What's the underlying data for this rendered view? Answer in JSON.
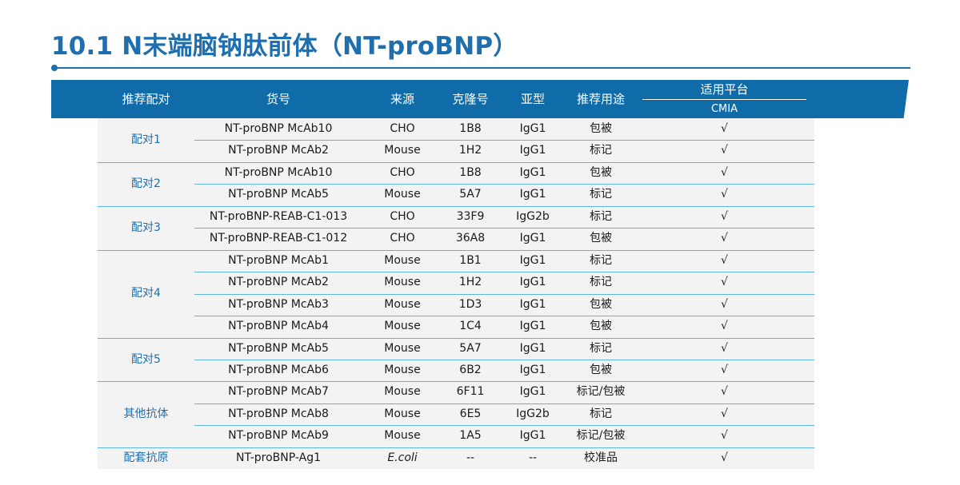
{
  "title": "10.1 N末端脑钠肽前体（NT-proBNP）",
  "headers": {
    "pair": "推荐配对",
    "catalog": "货号",
    "source": "来源",
    "clone": "克隆号",
    "subtype": "亚型",
    "usage": "推荐用途",
    "platform": "适用平台",
    "cmia": "CMIA"
  },
  "groups": [
    {
      "label": "配对1",
      "rows": [
        {
          "catalog": "NT-proBNP McAb10",
          "source": "CHO",
          "clone": "1B8",
          "subtype": "IgG1",
          "usage": "包被",
          "cmia": "√"
        },
        {
          "catalog": "NT-proBNP McAb2",
          "source": "Mouse",
          "clone": "1H2",
          "subtype": "IgG1",
          "usage": "标记",
          "cmia": "√"
        }
      ]
    },
    {
      "label": "配对2",
      "rows": [
        {
          "catalog": "NT-proBNP McAb10",
          "source": "CHO",
          "clone": "1B8",
          "subtype": "IgG1",
          "usage": "包被",
          "cmia": "√"
        },
        {
          "catalog": "NT-proBNP McAb5",
          "source": "Mouse",
          "clone": "5A7",
          "subtype": "IgG1",
          "usage": "标记",
          "cmia": "√"
        }
      ]
    },
    {
      "label": "配对3",
      "rows": [
        {
          "catalog": "NT-proBNP-REAB-C1-013",
          "source": "CHO",
          "clone": "33F9",
          "subtype": "IgG2b",
          "usage": "标记",
          "cmia": "√"
        },
        {
          "catalog": "NT-proBNP-REAB-C1-012",
          "source": "CHO",
          "clone": "36A8",
          "subtype": "IgG1",
          "usage": "包被",
          "cmia": "√"
        }
      ]
    },
    {
      "label": "配对4",
      "rows": [
        {
          "catalog": "NT-proBNP McAb1",
          "source": "Mouse",
          "clone": "1B1",
          "subtype": "IgG1",
          "usage": "标记",
          "cmia": "√"
        },
        {
          "catalog": "NT-proBNP McAb2",
          "source": "Mouse",
          "clone": "1H2",
          "subtype": "IgG1",
          "usage": "标记",
          "cmia": "√"
        },
        {
          "catalog": "NT-proBNP McAb3",
          "source": "Mouse",
          "clone": "1D3",
          "subtype": "IgG1",
          "usage": "包被",
          "cmia": "√"
        },
        {
          "catalog": "NT-proBNP McAb4",
          "source": "Mouse",
          "clone": "1C4",
          "subtype": "IgG1",
          "usage": "包被",
          "cmia": "√"
        }
      ]
    },
    {
      "label": "配对5",
      "rows": [
        {
          "catalog": "NT-proBNP McAb5",
          "source": "Mouse",
          "clone": "5A7",
          "subtype": "IgG1",
          "usage": "标记",
          "cmia": "√"
        },
        {
          "catalog": "NT-proBNP McAb6",
          "source": "Mouse",
          "clone": "6B2",
          "subtype": "IgG1",
          "usage": "包被",
          "cmia": "√"
        }
      ]
    },
    {
      "label": "其他抗体",
      "rows": [
        {
          "catalog": "NT-proBNP McAb7",
          "source": "Mouse",
          "clone": "6F11",
          "subtype": "IgG1",
          "usage": "标记/包被",
          "cmia": "√"
        },
        {
          "catalog": "NT-proBNP McAb8",
          "source": "Mouse",
          "clone": "6E5",
          "subtype": "IgG2b",
          "usage": "标记",
          "cmia": "√"
        },
        {
          "catalog": "NT-proBNP McAb9",
          "source": "Mouse",
          "clone": "1A5",
          "subtype": "IgG1",
          "usage": "标记/包被",
          "cmia": "√"
        }
      ]
    },
    {
      "label": "配套抗原",
      "rows": [
        {
          "catalog": "NT-proBNP-Ag1",
          "source": "E.coli",
          "clone": "--",
          "subtype": "--",
          "usage": "校准品",
          "cmia": "√"
        }
      ]
    }
  ]
}
